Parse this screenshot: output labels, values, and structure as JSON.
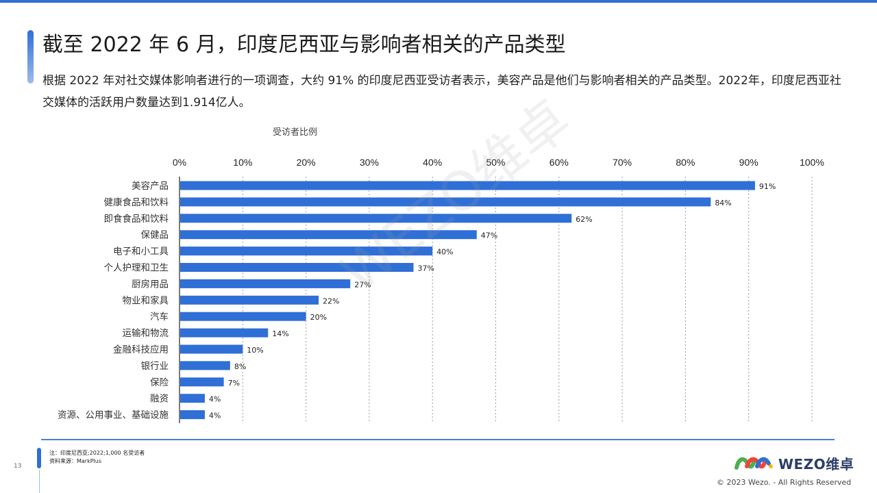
{
  "header": {
    "title": "截至 2022 年 6 月，印度尼西亚与影响者相关的产品类型",
    "subtitle": "根据 2022 年对社交媒体影响者进行的一项调查，大约 91% 的印度尼西亚受访者表示，美容产品是他们与影响者相关的产品类型。2022年，印度尼西亚社交媒体的活跃用户数量达到1.914亿人。"
  },
  "chart_data": {
    "type": "bar",
    "orientation": "horizontal",
    "xlabel": "受访者比例",
    "xlim": [
      0,
      100
    ],
    "xticks": [
      "0%",
      "10%",
      "20%",
      "30%",
      "40%",
      "50%",
      "60%",
      "70%",
      "80%",
      "90%",
      "100%"
    ],
    "grid": "vertical dashed",
    "bar_color": "#2f6fd6",
    "categories": [
      "美容产品",
      "健康食品和饮料",
      "即食食品和饮料",
      "保健品",
      "电子和小工具",
      "个人护理和卫生",
      "厨房用品",
      "物业和家具",
      "汽车",
      "运输和物流",
      "金融科技应用",
      "银行业",
      "保险",
      "融资",
      "资源、公用事业、基础设施"
    ],
    "values": [
      91,
      84,
      62,
      47,
      40,
      37,
      27,
      22,
      20,
      14,
      10,
      8,
      7,
      4,
      4
    ],
    "data_labels": [
      "91%",
      "84%",
      "62%",
      "47%",
      "40%",
      "37%",
      "27%",
      "22%",
      "20%",
      "14%",
      "10%",
      "8%",
      "7%",
      "4%",
      "4%"
    ]
  },
  "footer": {
    "note": "注：印度尼西亚;2022;1,000 名受访者",
    "source": "资料来源：MarkPlus",
    "page_number": "13",
    "logo_text": "WEZO维卓",
    "copyright": "© 2023 Wezo. - All Rights Reserved",
    "watermark": "WEZO维卓"
  }
}
